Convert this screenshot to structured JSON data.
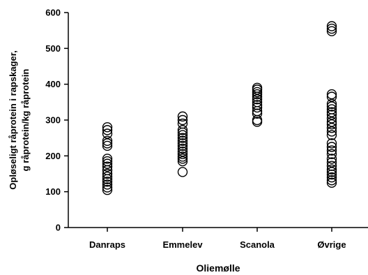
{
  "chart_data": {
    "type": "scatter",
    "categories": [
      "Danraps",
      "Emmelev",
      "Scanola",
      "Øvrige"
    ],
    "xlabel": "Oliemølle",
    "ylabel_lines": [
      "Opløseligt råprotein i rapskager,",
      "g råprotein/kg råprotein"
    ],
    "ylim": [
      0,
      600
    ],
    "yticks": [
      0,
      100,
      200,
      300,
      400,
      500,
      600
    ],
    "grid": false,
    "legend": "none",
    "marker": "open-circle",
    "series": [
      {
        "category": "Danraps",
        "values": [
          105,
          112,
          120,
          128,
          135,
          142,
          150,
          160,
          170,
          178,
          185,
          192,
          228,
          235,
          242,
          262,
          272,
          280
        ]
      },
      {
        "category": "Emmelev",
        "values": [
          155,
          185,
          192,
          198,
          205,
          212,
          220,
          228,
          235,
          242,
          250,
          258,
          265,
          272,
          290,
          300,
          310
        ]
      },
      {
        "category": "Scanola",
        "values": [
          295,
          300,
          318,
          325,
          335,
          342,
          350,
          358,
          365,
          372,
          378,
          385,
          390
        ]
      },
      {
        "category": "Øvrige",
        "values": [
          125,
          132,
          140,
          148,
          155,
          162,
          172,
          182,
          192,
          205,
          215,
          225,
          235,
          258,
          268,
          278,
          288,
          295,
          305,
          315,
          322,
          330,
          338,
          345,
          365,
          372,
          548,
          555,
          562
        ]
      }
    ]
  }
}
